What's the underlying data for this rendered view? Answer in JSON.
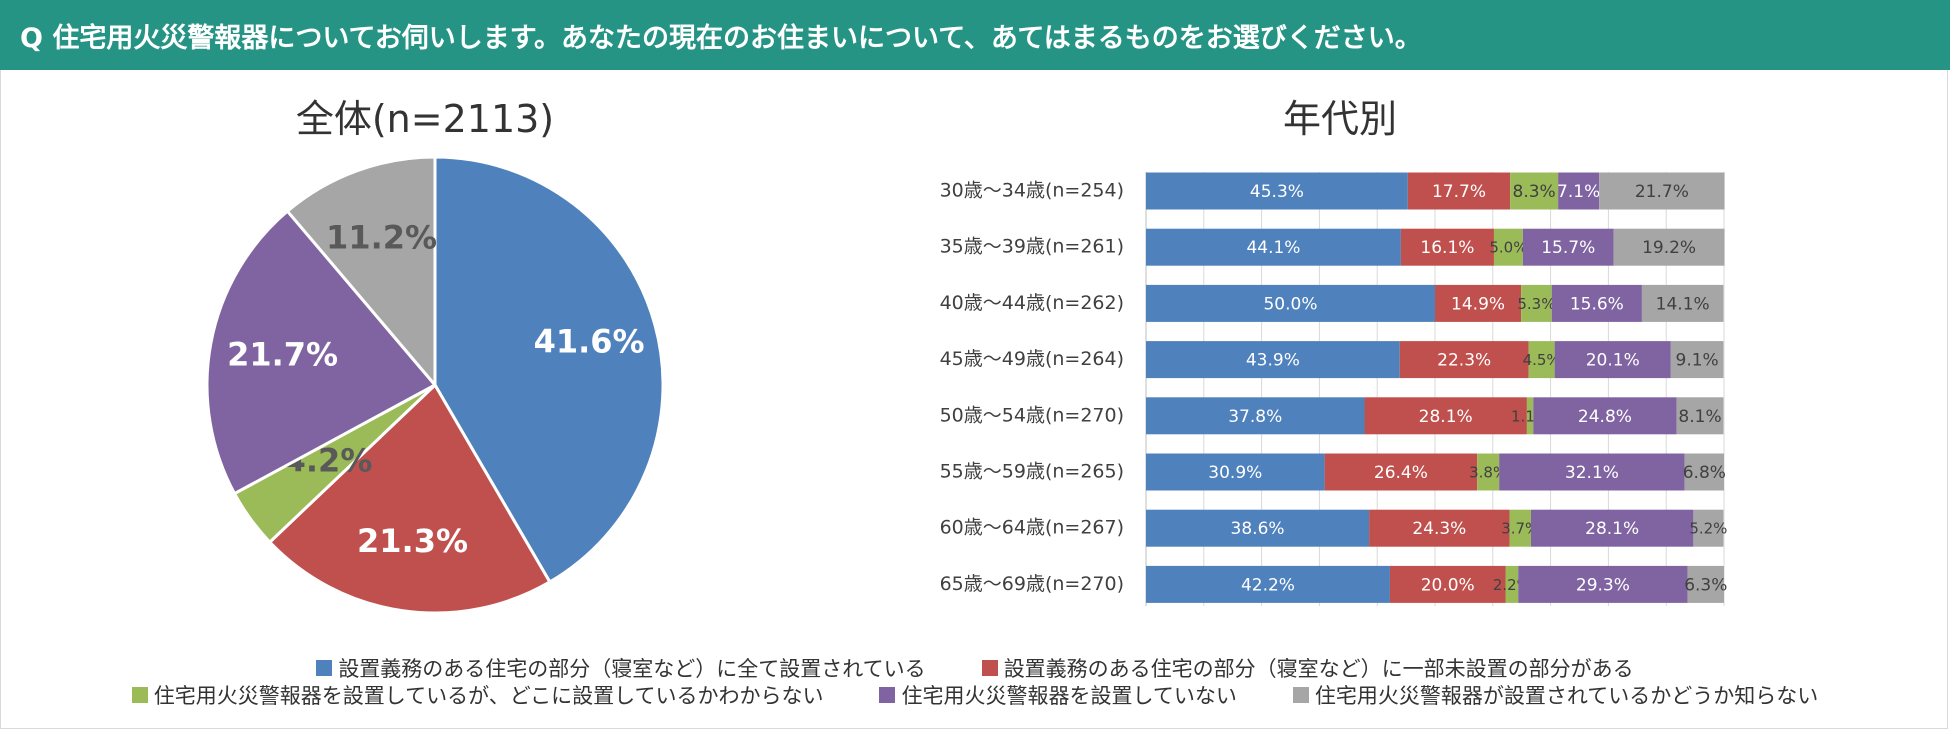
{
  "header": {
    "title": "Q 住宅用火災警報器についてお伺いします。あなたの現在のお住まいについて、あてはまるものをお選びください。"
  },
  "chart_data": [
    {
      "type": "pie",
      "title": "全体(n=2113)",
      "categories": [
        "設置義務のある住宅の部分（寝室など）に全て設置されている",
        "設置義務のある住宅の部分（寝室など）に一部未設置の部分がある",
        "住宅用火災警報器を設置しているが、どこに設置しているかわからない",
        "住宅用火災警報器を設置していない",
        "住宅用火災警報器が設置されているかどうか知らない"
      ],
      "values": [
        41.6,
        21.3,
        4.2,
        21.7,
        11.2
      ],
      "labels": [
        "41.6%",
        "21.3%",
        "4.2%",
        "21.7%",
        "11.2%"
      ],
      "colors": [
        "#4f81bd",
        "#c0504d",
        "#9bbb59",
        "#8064a2",
        "#a6a6a6"
      ]
    },
    {
      "type": "bar",
      "orientation": "horizontal-stacked-100",
      "title": "年代別",
      "categories": [
        "30歳～34歳(n=254)",
        "35歳～39歳(n=261)",
        "40歳～44歳(n=262)",
        "45歳～49歳(n=264)",
        "50歳～54歳(n=270)",
        "55歳～59歳(n=265)",
        "60歳～64歳(n=267)",
        "65歳～69歳(n=270)"
      ],
      "xlim": [
        0,
        100
      ],
      "grid": true,
      "series": [
        {
          "name": "設置義務のある住宅の部分（寝室など）に全て設置されている",
          "color": "#4f81bd",
          "values": [
            45.3,
            44.1,
            50.0,
            43.9,
            37.8,
            30.9,
            38.6,
            42.2
          ],
          "labels": [
            "45.3%",
            "44.1%",
            "50.0%",
            "43.9%",
            "37.8%",
            "30.9%",
            "38.6%",
            "42.2%"
          ]
        },
        {
          "name": "設置義務のある住宅の部分（寝室など）に一部未設置の部分がある",
          "color": "#c0504d",
          "values": [
            17.7,
            16.1,
            14.9,
            22.3,
            28.1,
            26.4,
            24.3,
            20.0
          ],
          "labels": [
            "17.7%",
            "16.1%",
            "14.9%",
            "22.3%",
            "28.1%",
            "26.4%",
            "24.3%",
            "20.0%"
          ]
        },
        {
          "name": "住宅用火災警報器を設置しているが、どこに設置しているかわからない",
          "color": "#9bbb59",
          "values": [
            8.3,
            5.0,
            5.3,
            4.5,
            1.1,
            3.8,
            3.7,
            2.2
          ],
          "labels": [
            "8.3%",
            "5.0%",
            "5.3%",
            "4.5%",
            "1.1%",
            "3.8%",
            "3.7%",
            "2.2%"
          ]
        },
        {
          "name": "住宅用火災警報器を設置していない",
          "color": "#8064a2",
          "values": [
            7.1,
            15.7,
            15.6,
            20.1,
            24.8,
            32.1,
            28.1,
            29.3
          ],
          "labels": [
            "7.1%",
            "15.7%",
            "15.6%",
            "20.1%",
            "24.8%",
            "32.1%",
            "28.1%",
            "29.3%"
          ]
        },
        {
          "name": "住宅用火災警報器が設置されているかどうか知らない",
          "color": "#a6a6a6",
          "values": [
            21.7,
            19.2,
            14.1,
            9.1,
            8.1,
            6.8,
            5.2,
            6.3
          ],
          "labels": [
            "21.7%",
            "19.2%",
            "14.1%",
            "9.1%",
            "8.1%",
            "6.8%",
            "5.2%",
            "6.3%"
          ]
        }
      ]
    }
  ],
  "legend": {
    "row1": [
      {
        "label": "設置義務のある住宅の部分（寝室など）に全て設置されている",
        "color": "#4f81bd"
      },
      {
        "label": "設置義務のある住宅の部分（寝室など）に一部未設置の部分がある",
        "color": "#c0504d"
      }
    ],
    "row2": [
      {
        "label": "住宅用火災警報器を設置しているが、どこに設置しているかわからない",
        "color": "#9bbb59"
      },
      {
        "label": "住宅用火災警報器を設置していない",
        "color": "#8064a2"
      },
      {
        "label": "住宅用火災警報器が設置されているかどうか知らない",
        "color": "#a6a6a6"
      }
    ]
  }
}
